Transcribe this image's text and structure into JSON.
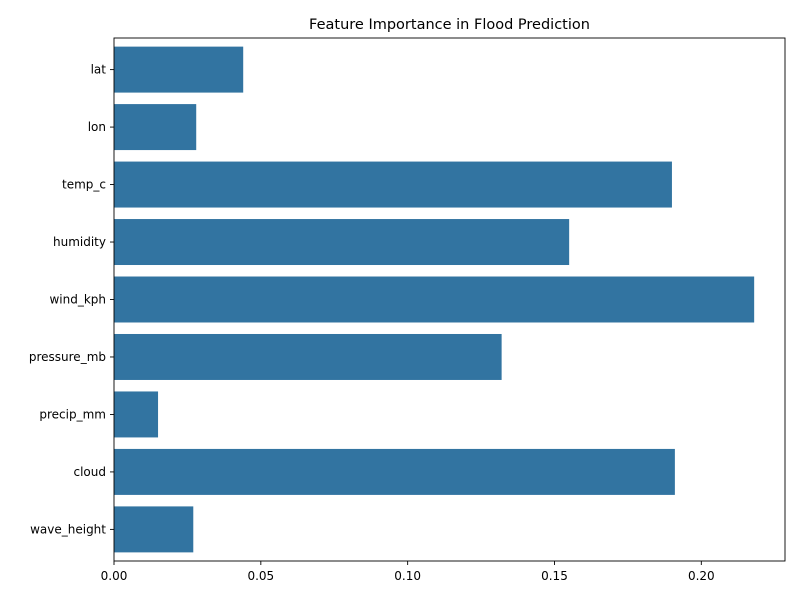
{
  "chart_data": {
    "type": "bar",
    "orientation": "horizontal",
    "title": "Feature Importance in Flood Prediction",
    "xlabel": "",
    "ylabel": "",
    "categories": [
      "lat",
      "lon",
      "temp_c",
      "humidity",
      "wind_kph",
      "pressure_mb",
      "precip_mm",
      "cloud",
      "wave_height"
    ],
    "values": [
      0.044,
      0.028,
      0.19,
      0.155,
      0.218,
      0.132,
      0.015,
      0.191,
      0.027
    ],
    "xlim": [
      0,
      0.2285
    ],
    "xticks": [
      0.0,
      0.05,
      0.1,
      0.15,
      0.2
    ],
    "xtick_labels": [
      "0.00",
      "0.05",
      "0.10",
      "0.15",
      "0.20"
    ],
    "grid": false,
    "bar_color": "#3274a1"
  }
}
